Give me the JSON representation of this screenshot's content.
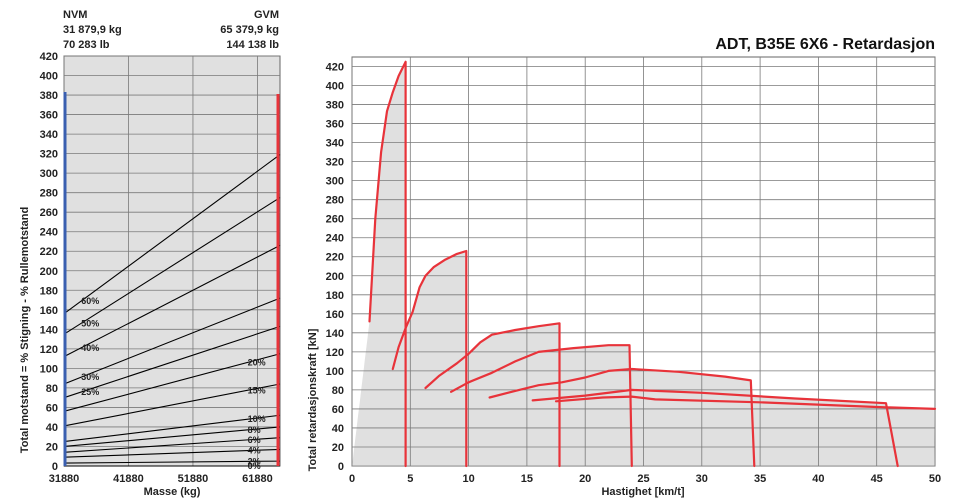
{
  "chart_data": [
    {
      "type": "line",
      "header": {
        "nvm_label": "NVM",
        "nvm_kg": "31 879,9 kg",
        "nvm_lb": "70 283 lb",
        "gvm_label": "GVM",
        "gvm_kg": "65 379,9 kg",
        "gvm_lb": "144 138 lb"
      },
      "xlabel": "Masse (kg)",
      "ylabel": "Total motstand = % Stigning - % Rullemotstand",
      "xlim": [
        31880,
        65380
      ],
      "ylim": [
        0,
        420
      ],
      "x_ticks": [
        "31880",
        "41880",
        "51880",
        "61880"
      ],
      "y_ticks": [
        "0",
        "20",
        "40",
        "60",
        "80",
        "100",
        "120",
        "140",
        "160",
        "180",
        "200",
        "220",
        "240",
        "260",
        "280",
        "300",
        "320",
        "340",
        "360",
        "380",
        "400",
        "420"
      ],
      "grid": true,
      "colors": {
        "nvm_line": "#3a5fb0",
        "gvm_line": "#e8333a",
        "grade_line": "#000000",
        "plot_bg": "#e0e0e0"
      },
      "series": [
        {
          "name": "60%",
          "values": [
            156,
            319
          ]
        },
        {
          "name": "50%",
          "values": [
            135,
            275
          ]
        },
        {
          "name": "40%",
          "values": [
            112,
            226
          ]
        },
        {
          "name": "30%",
          "values": [
            84,
            172
          ]
        },
        {
          "name": "25%",
          "values": [
            70,
            143
          ]
        },
        {
          "name": "20%",
          "values": [
            56,
            115
          ]
        },
        {
          "name": "15%",
          "values": [
            41,
            84
          ]
        },
        {
          "name": "10%",
          "values": [
            25,
            52
          ]
        },
        {
          "name": "8%",
          "values": [
            20,
            40
          ]
        },
        {
          "name": "6%",
          "values": [
            14,
            29
          ]
        },
        {
          "name": "4%",
          "values": [
            9,
            17
          ]
        },
        {
          "name": "2%",
          "values": [
            3,
            5
          ]
        },
        {
          "name": "0%",
          "values": [
            0,
            0
          ]
        }
      ],
      "left_labels": [
        "60%",
        "50%",
        "40%",
        "30%",
        "25%"
      ],
      "right_labels": [
        "20%",
        "15%",
        "10%",
        "8%",
        "6%",
        "4%",
        "2%",
        "0%"
      ]
    },
    {
      "type": "line",
      "title": "ADT, B35E 6X6 - Retardasjon",
      "xlabel": "Hastighet [km/t]",
      "ylabel": "Total retardasjonskraft [kN]",
      "xlim": [
        0,
        50
      ],
      "ylim": [
        0,
        430
      ],
      "x_ticks": [
        "0",
        "5",
        "10",
        "15",
        "20",
        "25",
        "30",
        "35",
        "40",
        "45",
        "50"
      ],
      "y_ticks": [
        "0",
        "20",
        "40",
        "60",
        "80",
        "100",
        "120",
        "140",
        "160",
        "180",
        "200",
        "220",
        "240",
        "260",
        "280",
        "300",
        "320",
        "340",
        "360",
        "380",
        "400",
        "420"
      ],
      "grid": true,
      "colors": {
        "curve": "#e8333a",
        "fill": "#e0e0e0"
      },
      "series": [
        {
          "x": [
            1.5,
            2.0,
            2.5,
            3.0,
            3.5,
            4.0,
            4.6,
            4.6,
            4.6
          ],
          "y": [
            152,
            260,
            330,
            373,
            393,
            410,
            425,
            300,
            0
          ]
        },
        {
          "x": [
            3.5,
            4.0,
            4.6,
            5.2,
            5.8,
            6.3,
            7.0,
            8.0,
            9.0,
            9.8,
            9.8
          ],
          "y": [
            102,
            125,
            145,
            162,
            188,
            200,
            209,
            217,
            223,
            226,
            0
          ]
        },
        {
          "x": [
            6.3,
            7.5,
            9.0,
            10.0,
            11.0,
            12.0,
            14.0,
            16.0,
            17.8,
            17.8
          ],
          "y": [
            82,
            95,
            108,
            118,
            130,
            138,
            143,
            147,
            150,
            0
          ]
        },
        {
          "x": [
            8.5,
            10.0,
            12.0,
            14.0,
            15.0,
            16.0,
            19.0,
            22.0,
            23.8,
            24.0
          ],
          "y": [
            78,
            88,
            98,
            110,
            115,
            120,
            124,
            127,
            127,
            0
          ]
        },
        {
          "x": [
            11.8,
            14.0,
            16.0,
            18.0,
            20.0,
            22.0,
            24.0,
            28.0,
            32.0,
            34.2,
            34.5
          ],
          "y": [
            72,
            79,
            85,
            88,
            93,
            100,
            102,
            99,
            94,
            90,
            0
          ]
        },
        {
          "x": [
            15.5,
            20.0,
            24.0,
            30.0,
            38.0,
            45.8,
            46.8
          ],
          "y": [
            69,
            74,
            80,
            77,
            71,
            66,
            0
          ]
        },
        {
          "x": [
            17.5,
            21.5,
            24.0,
            26.0,
            35.0,
            45.0,
            50.0
          ],
          "y": [
            68,
            72,
            73,
            70,
            67,
            62,
            60
          ]
        }
      ]
    }
  ]
}
